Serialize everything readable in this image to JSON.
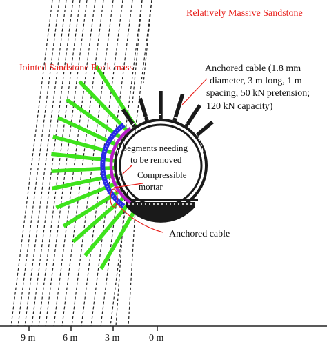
{
  "labels": {
    "massive_sandstone": "Relatively Massive Sandstone",
    "jointed_sandstone": "Jointed Sandstone Rock mass",
    "cable_spec_line1": "Anchored cable (1.8 mm",
    "cable_spec_line2": "diameter, 3 m long, 1 m",
    "cable_spec_line3": "spacing, 50 kN pretension;",
    "cable_spec_line4": "120 kN capacity)",
    "segments_line1": "Segments needing",
    "segments_line2": "to be removed",
    "mortar_line1": "Compressible",
    "mortar_line2": "mortar",
    "anchored_cable": "Anchored cable"
  },
  "scale_ticks": [
    "9 m",
    "6 m",
    "3 m",
    "0 m"
  ],
  "colors": {
    "red_text": "#e8201c",
    "green_cable": "#3ee31c",
    "black_cable": "#1a1a1a",
    "lining": "#1a1a1a",
    "removed_segments": "#b81ec8",
    "mortar": "#2a2ae6",
    "joints": "#222222"
  }
}
